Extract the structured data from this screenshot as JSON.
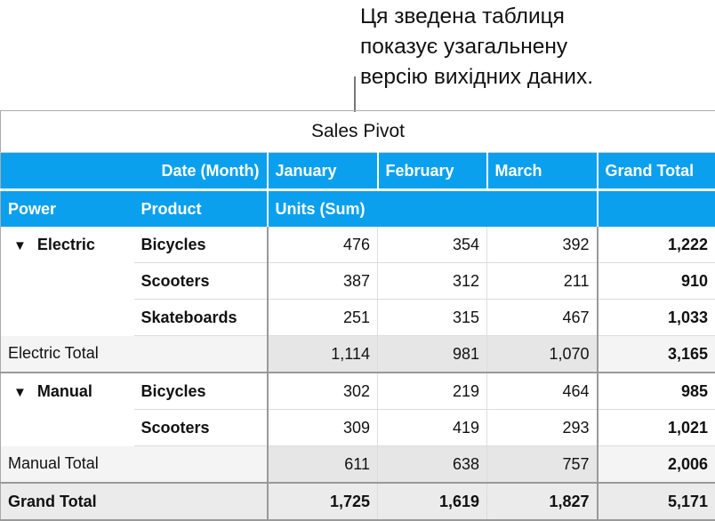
{
  "callout": {
    "lines": [
      "Ця зведена таблиця",
      "показує узагальнену",
      "версію вихідних даних."
    ]
  },
  "table": {
    "title": "Sales Pivot",
    "header1": {
      "column_field": "Date (Month)",
      "months": [
        "January",
        "February",
        "March"
      ],
      "grand_total": "Grand Total"
    },
    "header2": {
      "power": "Power",
      "product": "Product",
      "values_label": "Units (Sum)"
    },
    "groups": [
      {
        "name": "Electric",
        "expanded": true,
        "rows": [
          {
            "product": "Bicycles",
            "values": [
              "476",
              "354",
              "392"
            ],
            "total": "1,222"
          },
          {
            "product": "Scooters",
            "values": [
              "387",
              "312",
              "211"
            ],
            "total": "910"
          },
          {
            "product": "Skateboards",
            "values": [
              "251",
              "315",
              "467"
            ],
            "total": "1,033"
          }
        ],
        "subtotal": {
          "label": "Electric Total",
          "values": [
            "1,114",
            "981",
            "1,070"
          ],
          "total": "3,165"
        }
      },
      {
        "name": "Manual",
        "expanded": true,
        "rows": [
          {
            "product": "Bicycles",
            "values": [
              "302",
              "219",
              "464"
            ],
            "total": "985"
          },
          {
            "product": "Scooters",
            "values": [
              "309",
              "419",
              "293"
            ],
            "total": "1,021"
          }
        ],
        "subtotal": {
          "label": "Manual Total",
          "values": [
            "611",
            "638",
            "757"
          ],
          "total": "2,006"
        }
      }
    ],
    "grand_total": {
      "label": "Grand Total",
      "values": [
        "1,725",
        "1,619",
        "1,827"
      ],
      "total": "5,171"
    }
  },
  "colors": {
    "header_bg": "#0aa0ee",
    "subtotal_bg": "#e6e6e6"
  }
}
